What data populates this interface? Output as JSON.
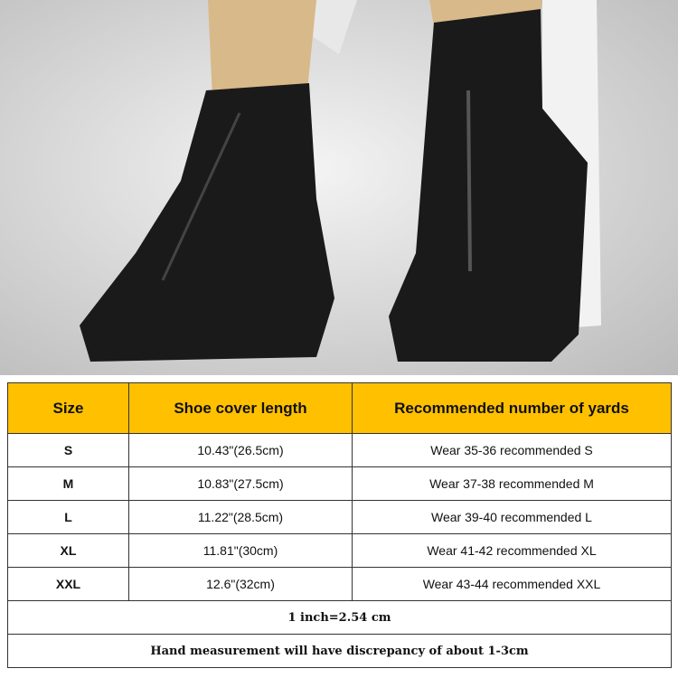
{
  "table": {
    "headers": [
      "Size",
      "Shoe cover length",
      "Recommended number of yards"
    ],
    "rows": [
      {
        "size": "S",
        "length": "10.43\"(26.5cm)",
        "recommend": "Wear 35-36 recommended S"
      },
      {
        "size": "M",
        "length": "10.83\"(27.5cm)",
        "recommend": "Wear 37-38 recommended M"
      },
      {
        "size": "L",
        "length": "11.22\"(28.5cm)",
        "recommend": "Wear 39-40 recommended L"
      },
      {
        "size": "XL",
        "length": "11.81\"(30cm)",
        "recommend": "Wear 41-42 recommended XL"
      },
      {
        "size": "XXL",
        "length": "12.6\"(32cm)",
        "recommend": "Wear 43-44 recommended XXL"
      }
    ],
    "notes": [
      "1 inch=2.54 cm",
      "Hand measurement will have discrepancy of about 1-3cm"
    ]
  },
  "colors": {
    "header_bg": "#ffc000",
    "cover": "#1a1a1a"
  }
}
